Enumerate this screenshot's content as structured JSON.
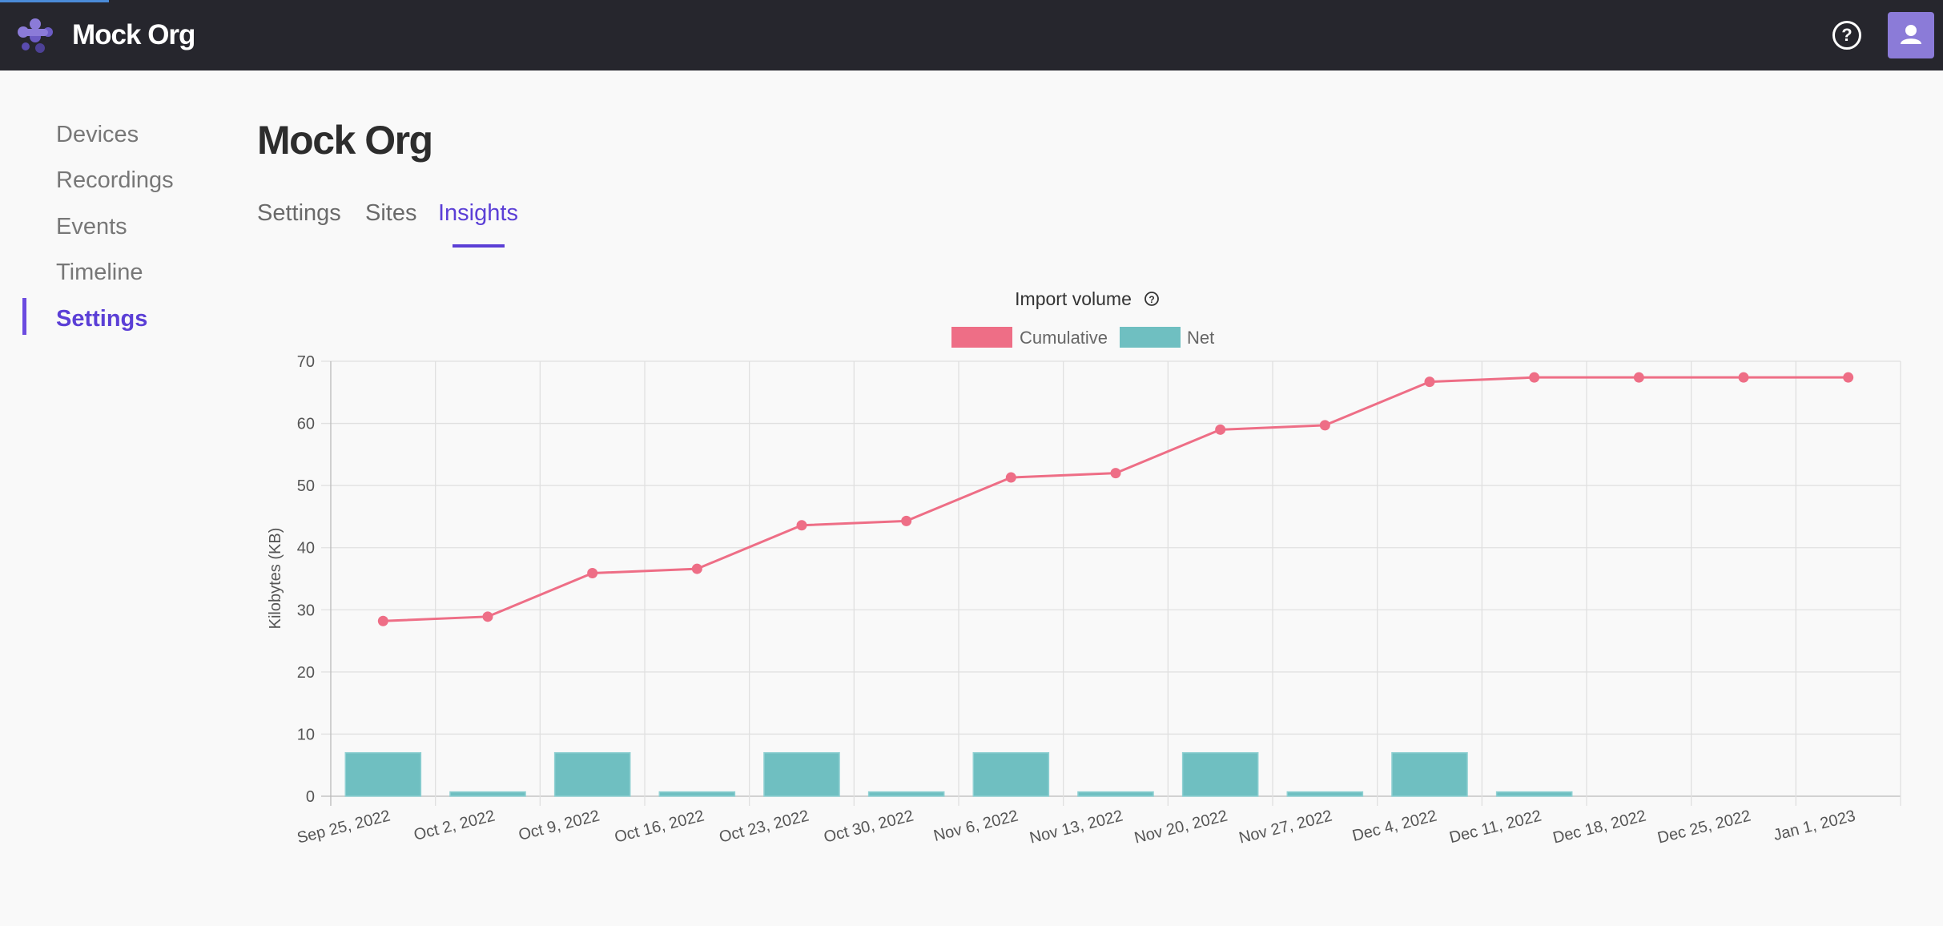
{
  "app": {
    "org_name": "Mock Org",
    "help_icon": "question-circle-icon",
    "avatar_icon": "user-icon",
    "colors": {
      "topbar": "#26262d",
      "accent": "#5b3fd6",
      "avatar": "#8b7bd8"
    }
  },
  "sidebar": {
    "items": [
      {
        "label": "Devices"
      },
      {
        "label": "Recordings"
      },
      {
        "label": "Events"
      },
      {
        "label": "Timeline"
      },
      {
        "label": "Settings",
        "active": true
      }
    ]
  },
  "main": {
    "title": "Mock Org",
    "tabs": [
      {
        "label": "Settings"
      },
      {
        "label": "Sites"
      },
      {
        "label": "Insights",
        "active": true
      }
    ]
  },
  "chart_data": {
    "type": "bar",
    "title": "Import volume",
    "title_icon": "question-circle-icon",
    "ylabel": "Kilobytes (KB)",
    "xlabel": "",
    "ylim": [
      0,
      70
    ],
    "yticks": [
      0,
      10,
      20,
      30,
      40,
      50,
      60,
      70
    ],
    "grid": true,
    "legend_position": "top-center",
    "categories": [
      "Sep 25, 2022",
      "Oct 2, 2022",
      "Oct 9, 2022",
      "Oct 16, 2022",
      "Oct 23, 2022",
      "Oct 30, 2022",
      "Nov 6, 2022",
      "Nov 13, 2022",
      "Nov 20, 2022",
      "Nov 27, 2022",
      "Dec 4, 2022",
      "Dec 11, 2022",
      "Dec 18, 2022",
      "Dec 25, 2022",
      "Jan 1, 2023"
    ],
    "series": [
      {
        "name": "Cumulative",
        "type": "line",
        "color": "#ee6e86",
        "values": [
          28.2,
          28.9,
          35.9,
          36.6,
          43.6,
          44.3,
          51.3,
          52.0,
          59.0,
          59.7,
          66.7,
          67.4,
          67.4,
          67.4,
          67.4
        ]
      },
      {
        "name": "Net",
        "type": "bar",
        "color": "#6fbfc1",
        "values": [
          7.0,
          0.7,
          7.0,
          0.7,
          7.0,
          0.7,
          7.0,
          0.7,
          7.0,
          0.7,
          7.0,
          0.7,
          0,
          0,
          0
        ]
      }
    ]
  }
}
